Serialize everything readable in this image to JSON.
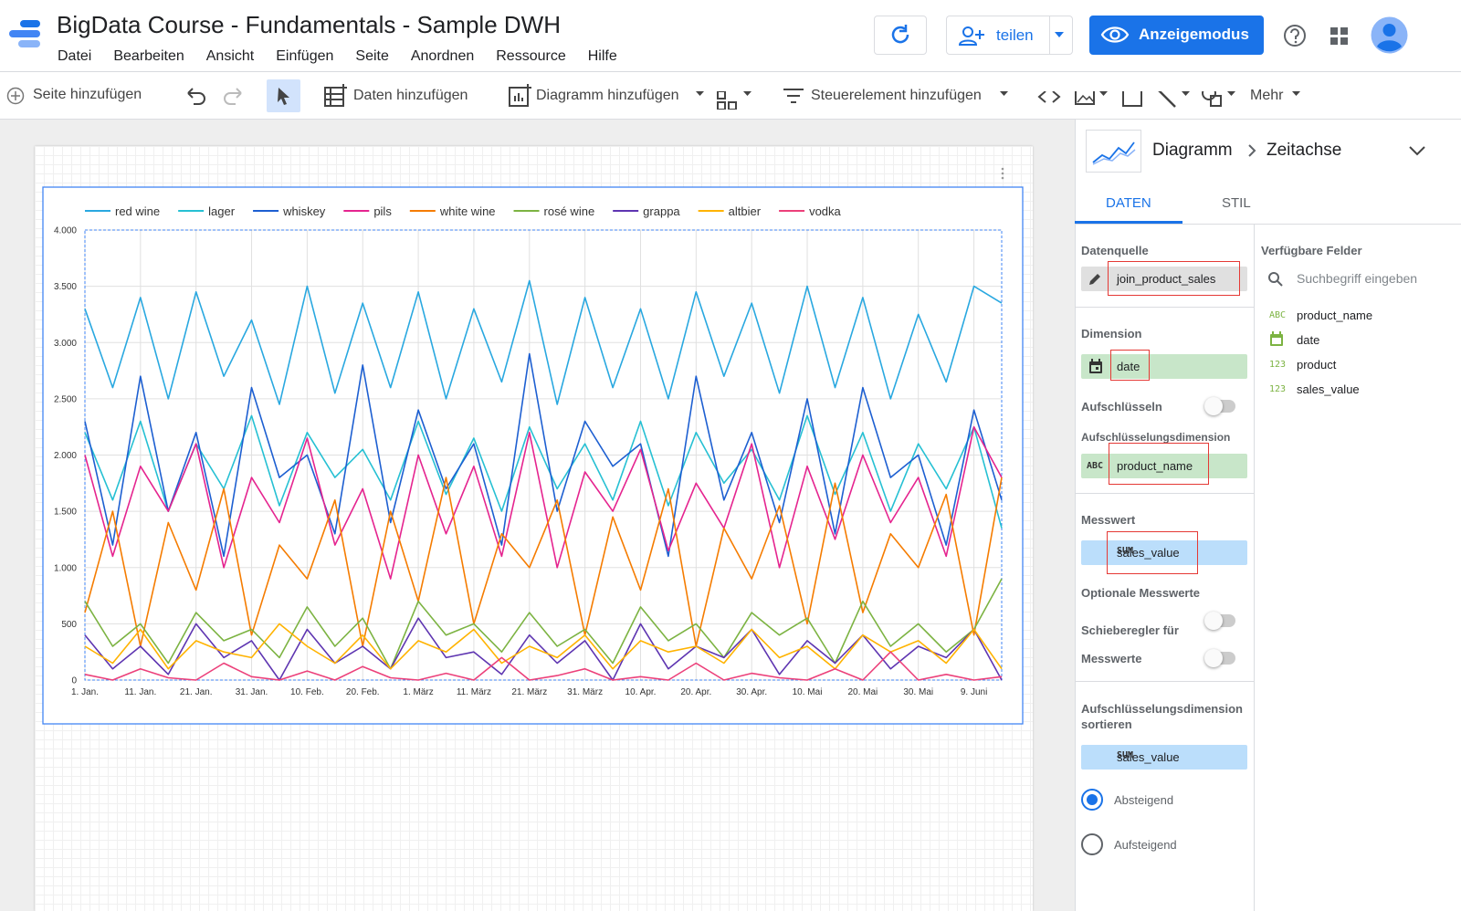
{
  "header": {
    "title": "BigData Course - Fundamentals - Sample DWH",
    "menu": [
      "Datei",
      "Bearbeiten",
      "Ansicht",
      "Einfügen",
      "Seite",
      "Anordnen",
      "Ressource",
      "Hilfe"
    ],
    "share": "teilen",
    "view_mode": "Anzeigemodus"
  },
  "toolbar": {
    "add_page": "Seite hinzufügen",
    "add_data": "Daten hinzufügen",
    "add_chart": "Diagramm hinzufügen",
    "add_control": "Steuerelement hinzufügen",
    "more": "Mehr"
  },
  "panel": {
    "breadcrumb": [
      "Diagramm",
      "Zeitachse"
    ],
    "tabs": [
      "DATEN",
      "STIL"
    ],
    "data_source_label": "Datenquelle",
    "data_source": "join_product_sales",
    "dimension_label": "Dimension",
    "dimension": "date",
    "breakdown_toggle": "Aufschlüsseln",
    "breakdown_label": "Aufschlüsselungsdimension",
    "breakdown_tag": "ABC",
    "breakdown": "product_name",
    "metric_label": "Messwert",
    "metric_agg": "SUM",
    "metric": "sales_value",
    "optional_label": "Optionale Messwerte",
    "slider_label": "Schieberegler für",
    "metrics_label": "Messwerte",
    "sort_label": [
      "Aufschlüsselungsdimension",
      "sortieren"
    ],
    "sort_agg": "SUM",
    "sort_field": "sales_value",
    "desc": "Absteigend",
    "asc": "Aufsteigend"
  },
  "fields": {
    "title": "Verfügbare Felder",
    "search": "Suchbegriff eingeben",
    "items": [
      {
        "tag": "ABC",
        "name": "product_name"
      },
      {
        "name": "date"
      },
      {
        "tag": "123",
        "name": "product"
      },
      {
        "tag": "123",
        "name": "sales_value"
      }
    ]
  },
  "chart_data": {
    "type": "line",
    "grid": true,
    "categories": [
      "1. Jan.",
      null,
      "11. Jan.",
      null,
      "21. Jan.",
      null,
      "31. Jan.",
      null,
      "10. Feb.",
      null,
      "20. Feb.",
      null,
      "1. März",
      null,
      "11. März",
      null,
      "21. März",
      null,
      "31. März",
      null,
      "10. Apr.",
      null,
      "20. Apr.",
      null,
      "30. Apr.",
      null,
      "10. Mai",
      null,
      "20. Mai",
      null,
      "30. Mai",
      null,
      "9. Juni",
      null
    ],
    "ylim": [
      0,
      4000
    ],
    "yticks": [
      0,
      500,
      {
        "value": 1000,
        "label": "1.000"
      },
      {
        "value": 1500,
        "label": "1.500"
      },
      {
        "value": 2000,
        "label": "2.000"
      },
      {
        "value": 2500,
        "label": "2.500"
      },
      {
        "value": 3000,
        "label": "3.000"
      },
      {
        "value": 3500,
        "label": "3.500"
      },
      {
        "value": 4000,
        "label": "4.000"
      }
    ],
    "series": [
      {
        "name": "red wine",
        "color": "#29a8e0",
        "values": [
          3300,
          2600,
          3400,
          2500,
          3450,
          2700,
          3200,
          2450,
          3500,
          2550,
          3350,
          2600,
          3450,
          2500,
          3300,
          2650,
          3550,
          2450,
          3400,
          2600,
          3300,
          2500,
          3450,
          2700,
          3350,
          2550,
          3500,
          2600,
          3400,
          2500,
          3250,
          2650,
          3500,
          3350
        ]
      },
      {
        "name": "lager",
        "color": "#26c0d3",
        "values": [
          2200,
          1600,
          2300,
          1500,
          2100,
          1700,
          2350,
          1550,
          2200,
          1800,
          2050,
          1600,
          2300,
          1650,
          2150,
          1500,
          2250,
          1700,
          2100,
          1600,
          2300,
          1550,
          2200,
          1750,
          2050,
          1600,
          2350,
          1650,
          2200,
          1500,
          2100,
          1700,
          2250,
          1350
        ]
      },
      {
        "name": "whiskey",
        "color": "#1d5fd1",
        "values": [
          2300,
          1200,
          2700,
          1500,
          2200,
          1100,
          2600,
          1800,
          2000,
          1300,
          2800,
          1400,
          2400,
          1700,
          2100,
          1200,
          2900,
          1500,
          2300,
          1900,
          2100,
          1100,
          2700,
          1600,
          2200,
          1400,
          2500,
          1300,
          2600,
          1800,
          2000,
          1200,
          2400,
          1600
        ]
      },
      {
        "name": "pils",
        "color": "#e5248f",
        "values": [
          2000,
          1100,
          1900,
          1500,
          2100,
          1000,
          1800,
          1400,
          2150,
          1200,
          1700,
          900,
          2000,
          1300,
          1900,
          1100,
          2200,
          1000,
          1850,
          1500,
          2050,
          1150,
          1750,
          1350,
          2100,
          1000,
          1900,
          1250,
          2000,
          1400,
          1800,
          1100,
          2250,
          1800
        ]
      },
      {
        "name": "white wine",
        "color": "#f57c00",
        "values": [
          600,
          1500,
          300,
          1400,
          800,
          1700,
          400,
          1200,
          900,
          1600,
          300,
          1500,
          700,
          1800,
          500,
          1300,
          1000,
          1600,
          400,
          1450,
          800,
          1700,
          300,
          1350,
          900,
          1550,
          500,
          1750,
          600,
          1300,
          1000,
          1650,
          400,
          1800
        ]
      },
      {
        "name": "rosé wine",
        "color": "#7cb342",
        "values": [
          700,
          300,
          500,
          150,
          600,
          350,
          450,
          200,
          650,
          300,
          550,
          100,
          700,
          400,
          500,
          250,
          600,
          300,
          450,
          150,
          650,
          350,
          500,
          200,
          600,
          400,
          550,
          150,
          700,
          300,
          500,
          250,
          450,
          900
        ]
      },
      {
        "name": "grappa",
        "color": "#5e35b1",
        "values": [
          400,
          100,
          300,
          50,
          500,
          200,
          350,
          0,
          450,
          150,
          300,
          100,
          550,
          200,
          250,
          50,
          400,
          150,
          350,
          0,
          500,
          100,
          300,
          200,
          450,
          50,
          350,
          150,
          400,
          100,
          300,
          200,
          450,
          0
        ]
      },
      {
        "name": "altbier",
        "color": "#ffb300",
        "values": [
          300,
          150,
          450,
          100,
          350,
          250,
          200,
          500,
          300,
          150,
          400,
          100,
          350,
          250,
          450,
          150,
          300,
          200,
          400,
          100,
          350,
          250,
          300,
          150,
          450,
          200,
          300,
          100,
          400,
          250,
          350,
          150,
          450,
          100
        ]
      },
      {
        "name": "vodka",
        "color": "#ec407a",
        "values": [
          50,
          0,
          100,
          20,
          0,
          150,
          30,
          0,
          80,
          0,
          120,
          20,
          0,
          60,
          0,
          200,
          0,
          40,
          100,
          0,
          30,
          0,
          150,
          0,
          60,
          20,
          0,
          100,
          0,
          250,
          0,
          50,
          0,
          30
        ]
      }
    ]
  }
}
